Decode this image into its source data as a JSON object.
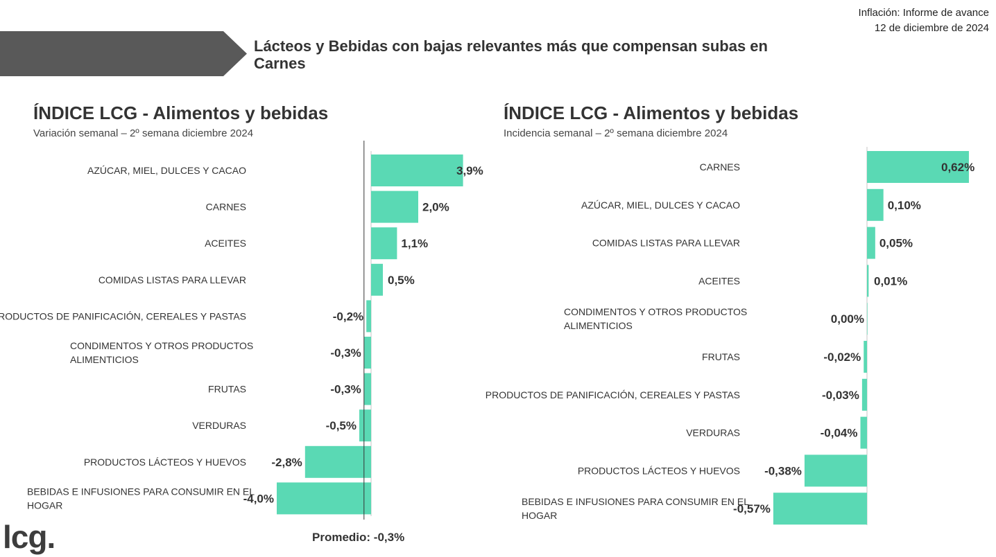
{
  "header": {
    "line1": "Inflación: Informe de avance",
    "line2": "12 de diciembre de 2024"
  },
  "slide_title": "Lácteos y Bebidas con bajas relevantes más que compensan subas en Carnes",
  "colors": {
    "bar": "#5ad9b4",
    "banner": "#595959",
    "axis": "#333333"
  },
  "average_label": "Promedio: -0,3%",
  "logo_text": "lcg.",
  "chart_data": [
    {
      "type": "bar",
      "orientation": "horizontal",
      "title": "ÍNDICE LCG - Alimentos y bebidas",
      "subtitle": "Variación semanal – 2º semana diciembre 2024",
      "categories": [
        [
          "AZÚCAR, MIEL, DULCES Y CACAO"
        ],
        [
          "CARNES"
        ],
        [
          "ACEITES"
        ],
        [
          "COMIDAS LISTAS PARA LLEVAR"
        ],
        [
          "PRODUCTOS DE PANIFICACIÓN, CEREALES Y PASTAS"
        ],
        [
          "CONDIMENTOS Y OTROS PRODUCTOS",
          "ALIMENTICIOS"
        ],
        [
          "FRUTAS"
        ],
        [
          "VERDURAS"
        ],
        [
          "PRODUCTOS LÁCTEOS Y HUEVOS"
        ],
        [
          "BEBIDAS E INFUSIONES PARA CONSUMIR EN EL",
          "HOGAR"
        ]
      ],
      "values": [
        3.9,
        2.0,
        1.1,
        0.5,
        -0.2,
        -0.3,
        -0.3,
        -0.5,
        -2.8,
        -4.0
      ],
      "labels": [
        "3,9%",
        "2,0%",
        "1,1%",
        "0,5%",
        "-0,2%",
        "-0,3%",
        "-0,3%",
        "-0,5%",
        "-2,8%",
        "-4,0%"
      ],
      "reference_line": -0.3
    },
    {
      "type": "bar",
      "orientation": "horizontal",
      "title": "ÍNDICE LCG - Alimentos y bebidas",
      "subtitle": "Incidencia semanal – 2º semana diciembre 2024",
      "categories": [
        [
          "CARNES"
        ],
        [
          "AZÚCAR, MIEL, DULCES Y CACAO"
        ],
        [
          "COMIDAS LISTAS PARA LLEVAR"
        ],
        [
          "ACEITES"
        ],
        [
          "CONDIMENTOS Y OTROS PRODUCTOS",
          "ALIMENTICIOS"
        ],
        [
          "FRUTAS"
        ],
        [
          "PRODUCTOS DE PANIFICACIÓN, CEREALES Y PASTAS"
        ],
        [
          "VERDURAS"
        ],
        [
          "PRODUCTOS LÁCTEOS Y HUEVOS"
        ],
        [
          "BEBIDAS E INFUSIONES PARA CONSUMIR EN EL",
          "HOGAR"
        ]
      ],
      "values": [
        0.62,
        0.1,
        0.05,
        0.01,
        0.0,
        -0.02,
        -0.03,
        -0.04,
        -0.38,
        -0.57
      ],
      "labels": [
        "0,62%",
        "0,10%",
        "0,05%",
        "0,01%",
        "0,00%",
        "-0,02%",
        "-0,03%",
        "-0,04%",
        "-0,38%",
        "-0,57%"
      ]
    }
  ]
}
